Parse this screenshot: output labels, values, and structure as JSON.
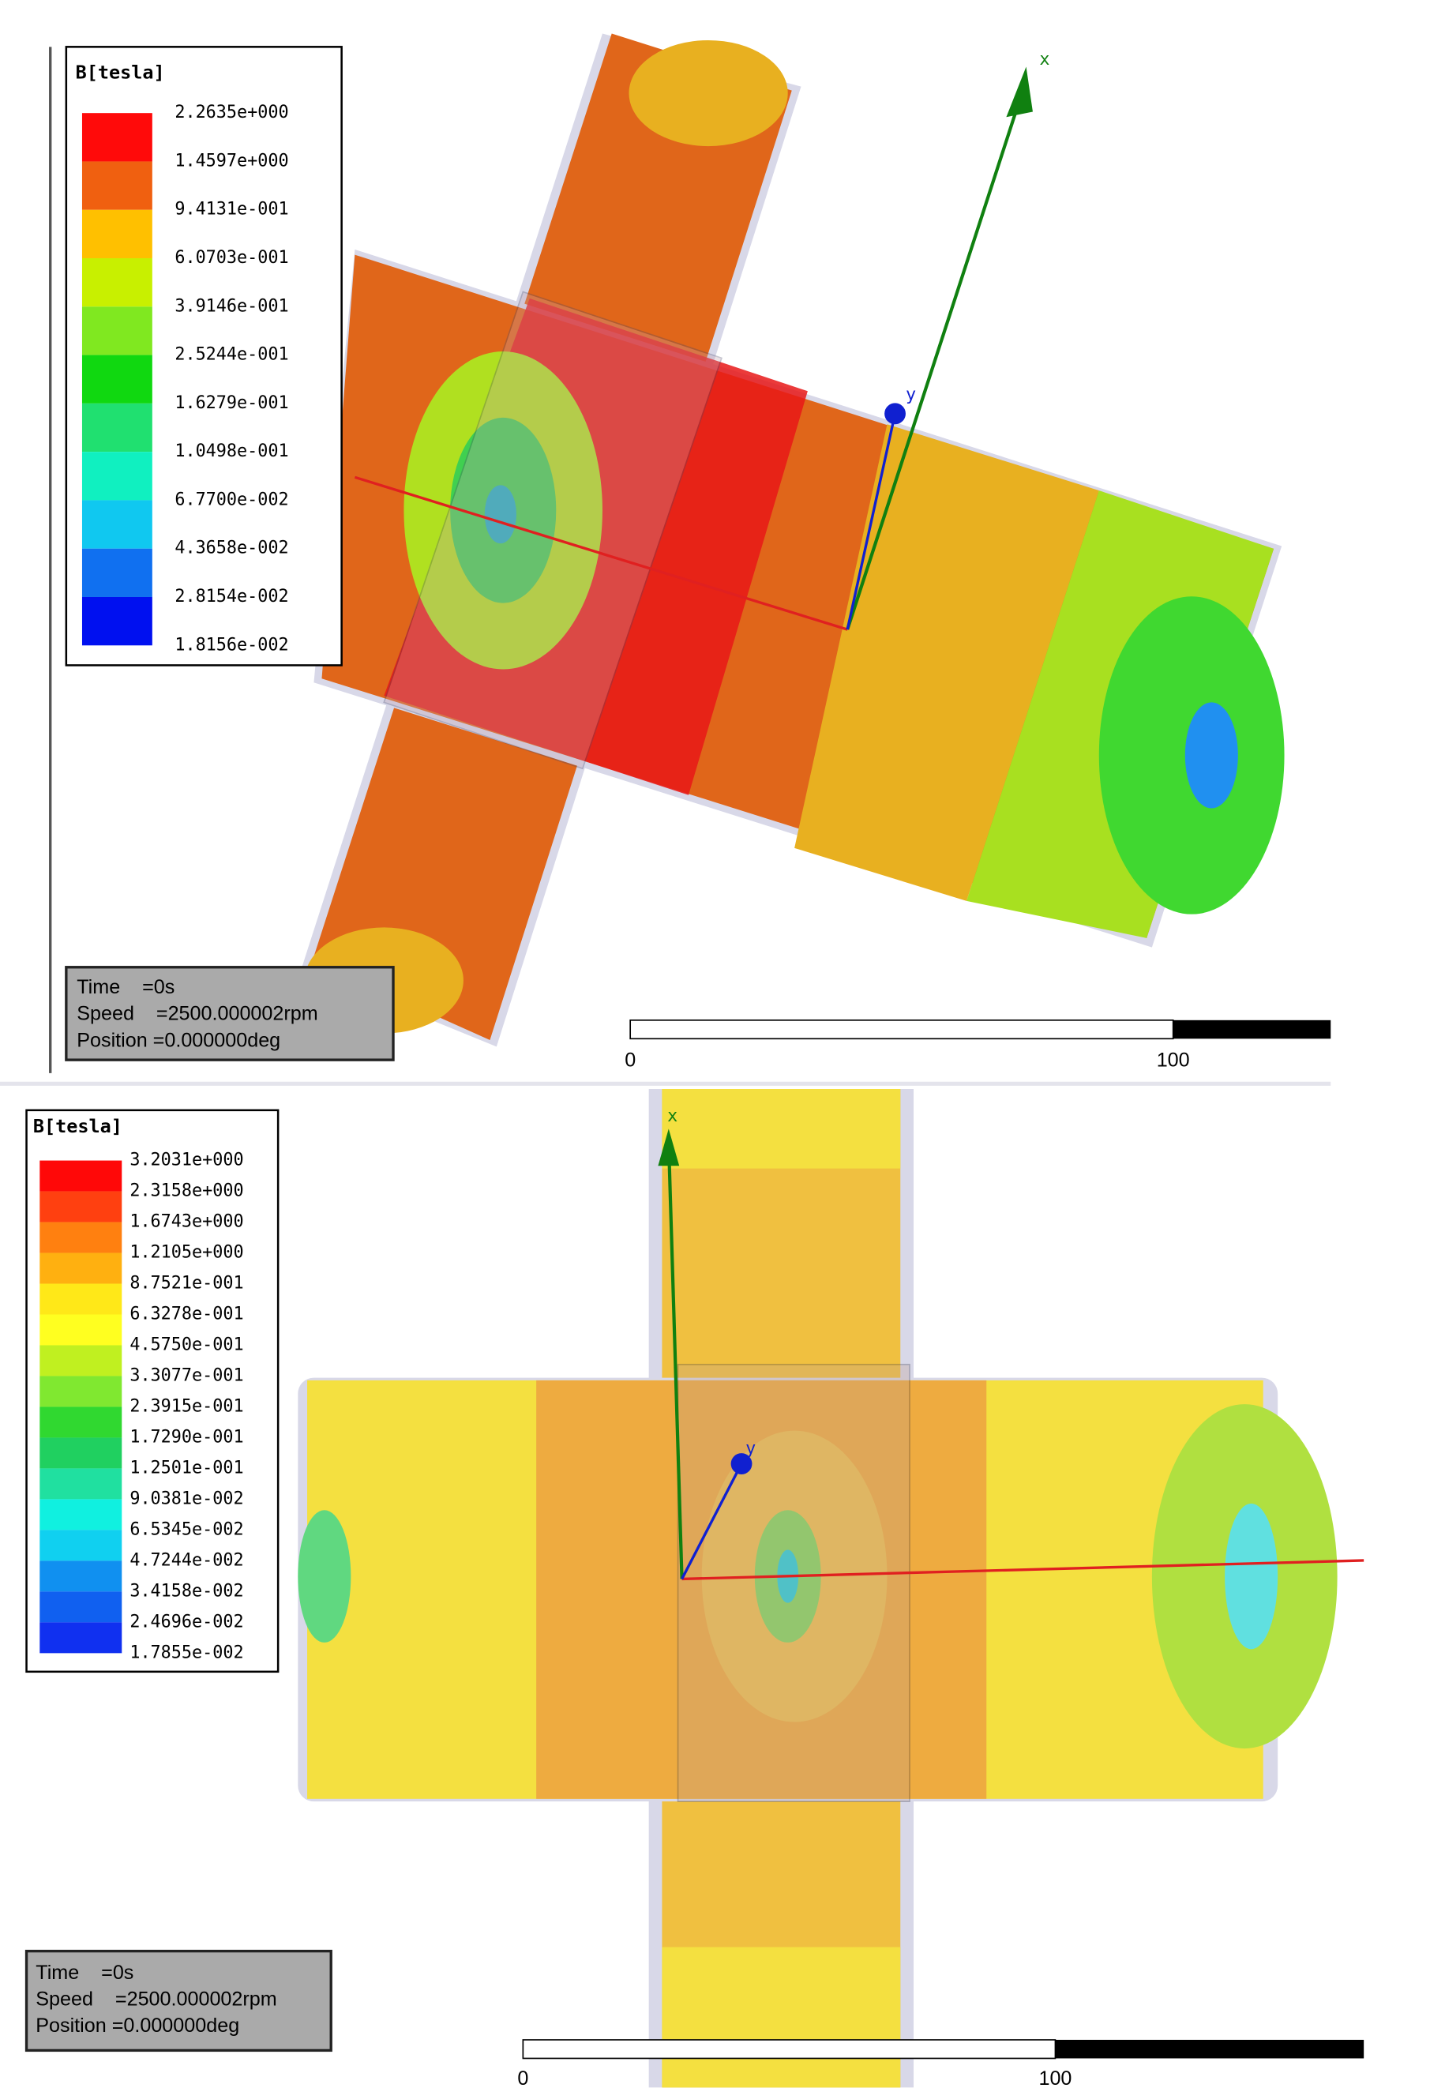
{
  "panels": [
    {
      "legend": {
        "title": "B[tesla]",
        "labels": [
          "2.2635e+000",
          "1.4597e+000",
          "9.4131e-001",
          "6.0703e-001",
          "3.9146e-001",
          "2.5244e-001",
          "1.6279e-001",
          "1.0498e-001",
          "6.7700e-002",
          "4.3658e-002",
          "2.8154e-002",
          "1.8156e-002"
        ],
        "colors": [
          "#ff0a0a",
          "#f06010",
          "#ffc000",
          "#c8f000",
          "#80e820",
          "#10d810",
          "#20e070",
          "#10f0c0",
          "#10c8f0",
          "#1070f0",
          "#0010f0"
        ]
      },
      "info": [
        "Time    =0s",
        "Speed    =2500.000002rpm",
        "Position =0.000000deg"
      ],
      "scale": {
        "start": "0",
        "end": "100"
      },
      "axes": {
        "x": "x",
        "y": "y"
      }
    },
    {
      "legend": {
        "title": "B[tesla]",
        "labels": [
          "3.2031e+000",
          "2.3158e+000",
          "1.6743e+000",
          "1.2105e+000",
          "8.7521e-001",
          "6.3278e-001",
          "4.5750e-001",
          "3.3077e-001",
          "2.3915e-001",
          "1.7290e-001",
          "1.2501e-001",
          "9.0381e-002",
          "6.5345e-002",
          "4.7244e-002",
          "3.4158e-002",
          "2.4696e-002",
          "1.7855e-002"
        ],
        "colors": [
          "#ff0808",
          "#ff4010",
          "#ff8010",
          "#ffb010",
          "#ffe818",
          "#ffff20",
          "#c0f020",
          "#80e830",
          "#30d830",
          "#20d060",
          "#20e0a0",
          "#10f0e0",
          "#10d0f0",
          "#1090f0",
          "#1060f0",
          "#1030f0"
        ]
      },
      "info": [
        "Time    =0s",
        "Speed    =2500.000002rpm",
        "Position =0.000000deg"
      ],
      "scale": {
        "start": "0",
        "end": "100"
      },
      "axes": {
        "x": "x",
        "y": "y"
      }
    }
  ]
}
